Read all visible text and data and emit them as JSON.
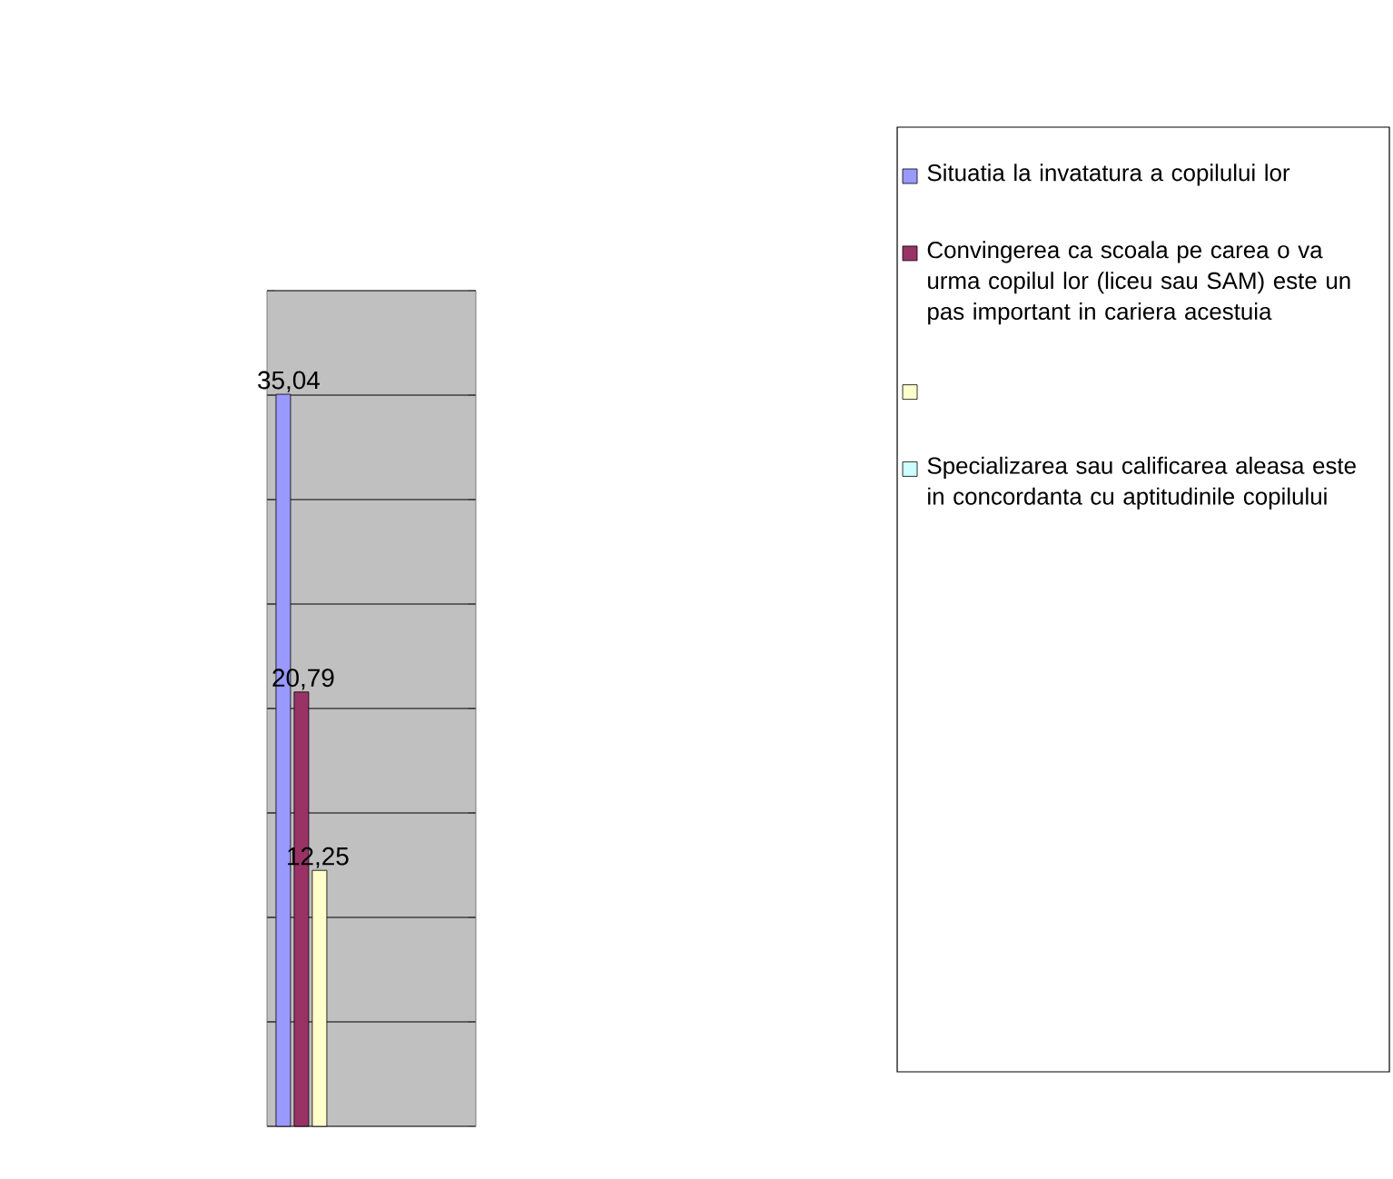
{
  "chart_data": {
    "type": "bar",
    "categories": [
      null
    ],
    "series": [
      {
        "name": "Situatia la invatatura a copilului lor",
        "color": "#9999ff",
        "values": [
          35.04
        ],
        "value_labels": [
          "35,04"
        ]
      },
      {
        "name": "Convingerea ca scoala pe carea o va urma copilul lor (liceu sau SAM) este un pas important in cariera acestuia",
        "color": "#993366",
        "values": [
          20.79
        ],
        "value_labels": [
          "20,79"
        ]
      },
      {
        "color": "#ffffcc",
        "values": [
          12.25
        ],
        "value_labels": [
          "12,25"
        ]
      },
      {
        "name": "Specializarea sau calificarea aleasa este in concordanta cu aptitudinile copilului",
        "color": "#ccffff",
        "values": [
          null
        ],
        "value_labels": [
          null
        ]
      }
    ],
    "ylim": [
      0,
      40
    ],
    "yticks": [
      {
        "value": 0,
        "label": null
      },
      {
        "value": 5,
        "label": null
      },
      {
        "value": 10,
        "label": null
      },
      {
        "value": 15,
        "label": null
      },
      {
        "value": 20,
        "label": null
      },
      {
        "value": 25,
        "label": null
      },
      {
        "value": 30,
        "label": null
      },
      {
        "value": 35,
        "label": null
      },
      {
        "value": 40,
        "label": null
      }
    ],
    "grid": "y",
    "legend": "right"
  }
}
